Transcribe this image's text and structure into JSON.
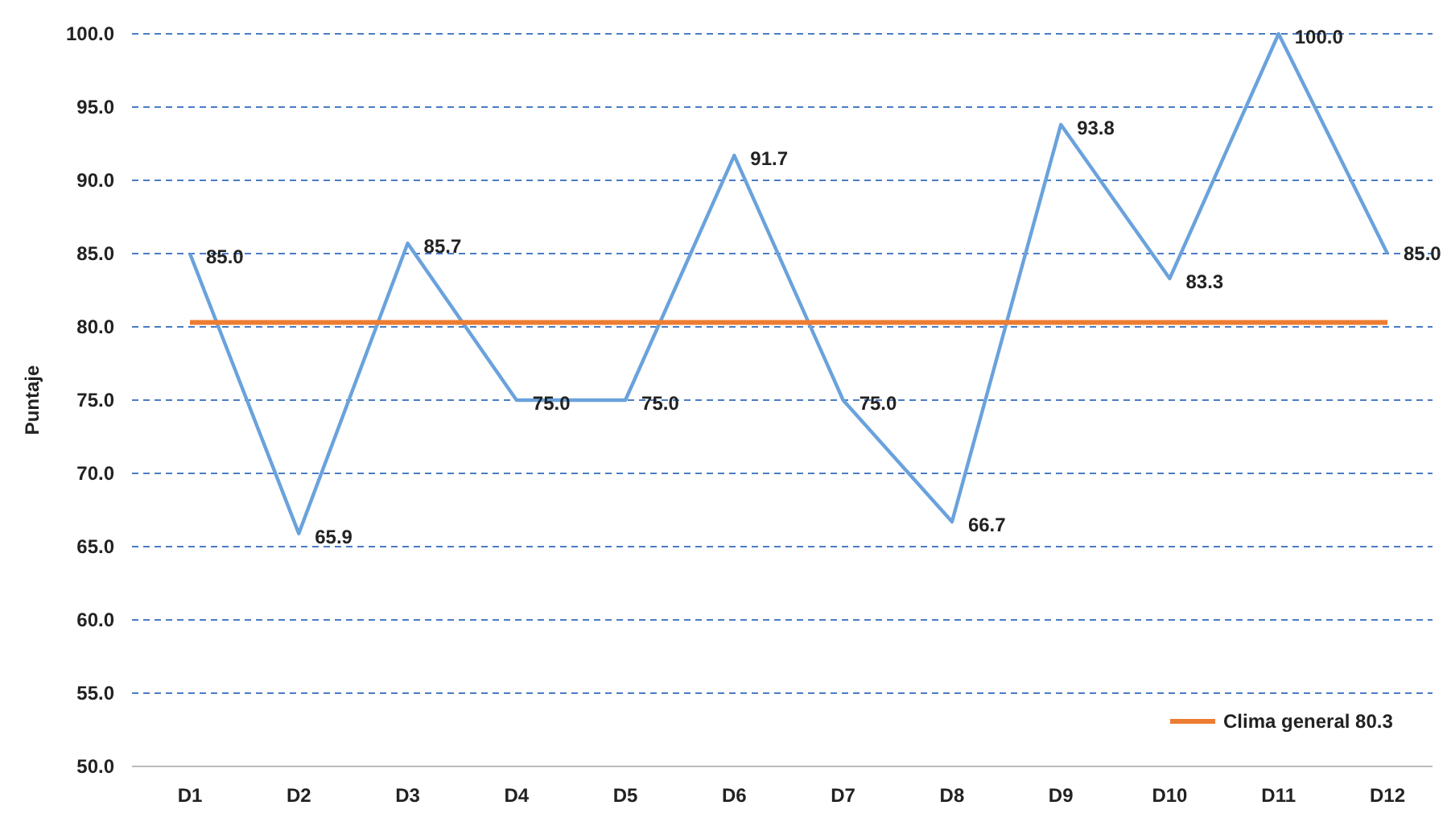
{
  "chart_data": {
    "type": "line",
    "ylabel": "Puntaje",
    "categories": [
      "D1",
      "D2",
      "D3",
      "D4",
      "D5",
      "D6",
      "D7",
      "D8",
      "D9",
      "D10",
      "D11",
      "D12"
    ],
    "series": [
      {
        "color": "#6aa2dc",
        "values": [
          85.0,
          65.9,
          85.7,
          75.0,
          75.0,
          91.7,
          75.0,
          66.7,
          93.8,
          83.3,
          100.0,
          85.0
        ],
        "value_labels": [
          "85.0",
          "65.9",
          "85.7",
          "75.0",
          "75.0",
          "91.7",
          "75.0",
          "66.7",
          "93.8",
          "83.3",
          "100.0",
          "85.0"
        ]
      },
      {
        "name": "Clima general 80.3",
        "color": "#ed7d31",
        "values": [
          80.3,
          80.3,
          80.3,
          80.3,
          80.3,
          80.3,
          80.3,
          80.3,
          80.3,
          80.3,
          80.3,
          80.3
        ]
      }
    ],
    "ylim": [
      50,
      100
    ],
    "yticks": [
      {
        "value": 50,
        "label": "50.0"
      },
      {
        "value": 55,
        "label": "55.0"
      },
      {
        "value": 60,
        "label": "60.0"
      },
      {
        "value": 65,
        "label": "65.0"
      },
      {
        "value": 70,
        "label": "70.0"
      },
      {
        "value": 75,
        "label": "75.0"
      },
      {
        "value": 80,
        "label": "80.0"
      },
      {
        "value": 85,
        "label": "85.0"
      },
      {
        "value": 90,
        "label": "90.0"
      },
      {
        "value": 95,
        "label": "95.0"
      },
      {
        "value": 100,
        "label": "100.0"
      }
    ],
    "grid": "y",
    "legend": "bottom right",
    "marker": "none",
    "line_style": "solid"
  }
}
